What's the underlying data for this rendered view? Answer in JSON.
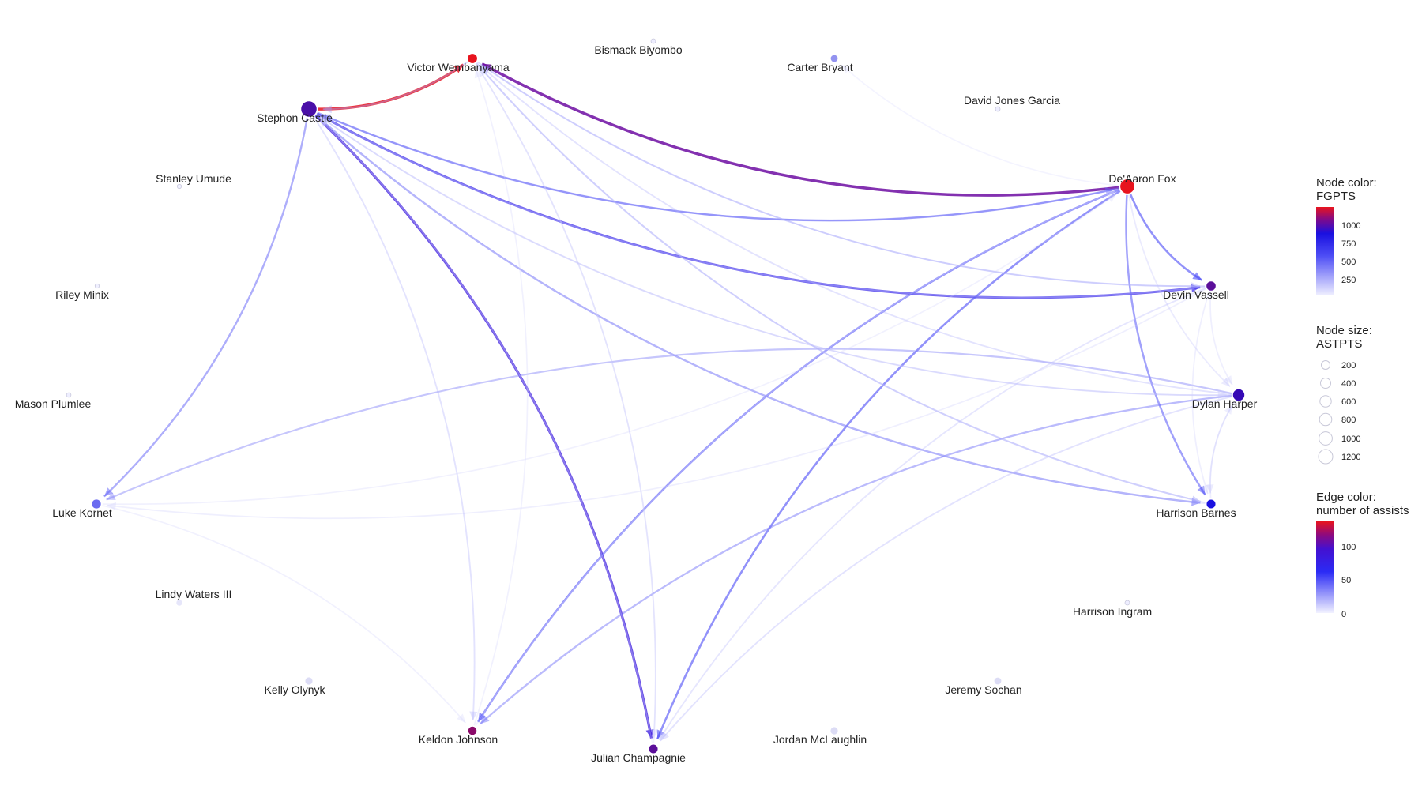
{
  "nodes": [
    {
      "id": "wemby",
      "name": "Victor Wembanyama",
      "color": "#e8141e",
      "size_val": 320
    },
    {
      "id": "biyombo",
      "name": "Bismack Biyombo",
      "color": "#eeeeff",
      "size_val": 20
    },
    {
      "id": "bryant",
      "name": "Carter Bryant",
      "color": "#9393f0",
      "size_val": 120
    },
    {
      "id": "castle",
      "name": "Stephon Castle",
      "color": "#4a0fa8",
      "size_val": 1250
    },
    {
      "id": "garcia",
      "name": "David Jones Garcia",
      "color": "#eeeeff",
      "size_val": 20
    },
    {
      "id": "fox",
      "name": "De'Aaron Fox",
      "color": "#e8141e",
      "size_val": 980
    },
    {
      "id": "umude",
      "name": "Stanley Umude",
      "color": "#f0f0ff",
      "size_val": 10
    },
    {
      "id": "minix",
      "name": "Riley Minix",
      "color": "#f0f0ff",
      "size_val": 10
    },
    {
      "id": "vassell",
      "name": "Devin Vassell",
      "color": "#5b0f9a",
      "size_val": 300
    },
    {
      "id": "plumlee",
      "name": "Mason Plumlee",
      "color": "#eeeeff",
      "size_val": 15
    },
    {
      "id": "harper",
      "name": "Dylan Harper",
      "color": "#3509b5",
      "size_val": 560
    },
    {
      "id": "kornet",
      "name": "Luke Kornet",
      "color": "#6b6bf0",
      "size_val": 280
    },
    {
      "id": "barnes",
      "name": "Harrison Barnes",
      "color": "#1a10e0",
      "size_val": 260
    },
    {
      "id": "waters",
      "name": "Lindy Waters III",
      "color": "#e6e6fa",
      "size_val": 60
    },
    {
      "id": "ingram",
      "name": "Harrison Ingram",
      "color": "#eeeeff",
      "size_val": 20
    },
    {
      "id": "olynyk",
      "name": "Kelly Olynyk",
      "color": "#dcdcf5",
      "size_val": 140
    },
    {
      "id": "sochan",
      "name": "Jeremy Sochan",
      "color": "#dcdcf5",
      "size_val": 120
    },
    {
      "id": "johnson",
      "name": "Keldon Johnson",
      "color": "#8b0a6a",
      "size_val": 220
    },
    {
      "id": "mclaughlin",
      "name": "Jordan McLaughlin",
      "color": "#dcdcf5",
      "size_val": 140
    },
    {
      "id": "champagnie",
      "name": "Julian Champagnie",
      "color": "#5b0f9a",
      "size_val": 260
    }
  ],
  "edges": [
    {
      "from": "castle",
      "to": "wemby",
      "assists": 140
    },
    {
      "from": "fox",
      "to": "wemby",
      "assists": 110
    },
    {
      "from": "castle",
      "to": "champagnie",
      "assists": 85
    },
    {
      "from": "castle",
      "to": "vassell",
      "assists": 75
    },
    {
      "from": "castle",
      "to": "fox",
      "assists": 45
    },
    {
      "from": "castle",
      "to": "kornet",
      "assists": 45
    },
    {
      "from": "castle",
      "to": "barnes",
      "assists": 45
    },
    {
      "from": "fox",
      "to": "castle",
      "assists": 38
    },
    {
      "from": "fox",
      "to": "johnson",
      "assists": 55
    },
    {
      "from": "fox",
      "to": "champagnie",
      "assists": 55
    },
    {
      "from": "fox",
      "to": "vassell",
      "assists": 55
    },
    {
      "from": "fox",
      "to": "barnes",
      "assists": 50
    },
    {
      "from": "harper",
      "to": "johnson",
      "assists": 40
    },
    {
      "from": "harper",
      "to": "kornet",
      "assists": 35
    },
    {
      "from": "wemby",
      "to": "castle",
      "assists": 25
    },
    {
      "from": "wemby",
      "to": "barnes",
      "assists": 28
    },
    {
      "from": "wemby",
      "to": "vassell",
      "assists": 22
    },
    {
      "from": "wemby",
      "to": "champagnie",
      "assists": 15
    },
    {
      "from": "vassell",
      "to": "wemby",
      "assists": 22
    },
    {
      "from": "vassell",
      "to": "castle",
      "assists": 22
    },
    {
      "from": "vassell",
      "to": "champagnie",
      "assists": 18
    },
    {
      "from": "vassell",
      "to": "kornet",
      "assists": 12
    },
    {
      "from": "harper",
      "to": "wemby",
      "assists": 20
    },
    {
      "from": "harper",
      "to": "castle",
      "assists": 18
    },
    {
      "from": "harper",
      "to": "champagnie",
      "assists": 20
    },
    {
      "from": "harper",
      "to": "barnes",
      "assists": 15
    },
    {
      "from": "barnes",
      "to": "wemby",
      "assists": 15
    },
    {
      "from": "barnes",
      "to": "castle",
      "assists": 15
    },
    {
      "from": "barnes",
      "to": "harper",
      "assists": 12
    },
    {
      "from": "champagnie",
      "to": "wemby",
      "assists": 10
    },
    {
      "from": "champagnie",
      "to": "castle",
      "assists": 8
    },
    {
      "from": "castle",
      "to": "johnson",
      "assists": 20
    },
    {
      "from": "castle",
      "to": "harper",
      "assists": 15
    },
    {
      "from": "kornet",
      "to": "johnson",
      "assists": 10
    },
    {
      "from": "kornet",
      "to": "fox",
      "assists": 10
    },
    {
      "from": "johnson",
      "to": "fox",
      "assists": 8
    },
    {
      "from": "johnson",
      "to": "wemby",
      "assists": 10
    },
    {
      "from": "fox",
      "to": "harper",
      "assists": 15
    },
    {
      "from": "vassell",
      "to": "harper",
      "assists": 12
    },
    {
      "from": "vassell",
      "to": "barnes",
      "assists": 12
    },
    {
      "from": "fox",
      "to": "bryant",
      "assists": 8
    }
  ],
  "legend": {
    "node_color_title": [
      "Node color:",
      "FGPTS"
    ],
    "node_color_ticks": [
      "1000",
      "750",
      "500",
      "250"
    ],
    "node_size_title": [
      "Node size:",
      "ASTPTS"
    ],
    "node_size_ticks": [
      "200",
      "400",
      "600",
      "800",
      "1000",
      "1200"
    ],
    "edge_color_title": [
      "Edge color:",
      "number of assists"
    ],
    "edge_color_ticks": [
      "100",
      "50",
      "0"
    ]
  }
}
